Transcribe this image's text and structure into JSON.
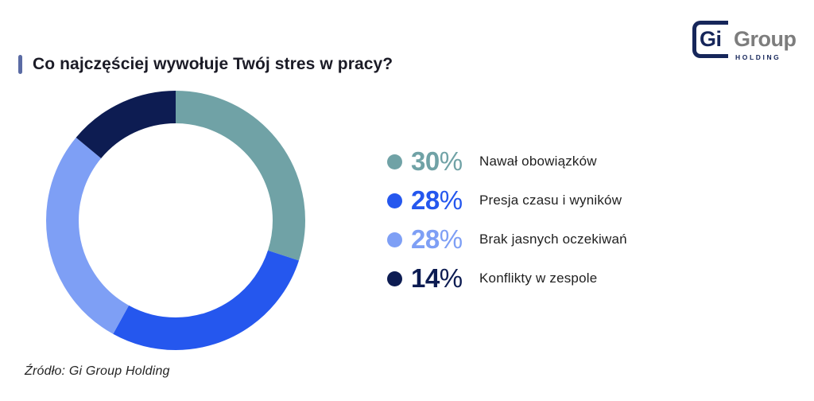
{
  "header": {
    "title": "Co najczęściej wywołuje Twój stres w pracy?",
    "accent_color": "#5A6BA4"
  },
  "logo": {
    "part_gi": "Gi",
    "part_group": "Group",
    "part_holding": "HOLDING",
    "navy": "#16265A",
    "gray": "#7D7D7D"
  },
  "chart_data": {
    "type": "pie",
    "subtype": "donut",
    "title": "Co najczęściej wywołuje Twój stres w pracy?",
    "start_angle_deg": 0,
    "direction": "clockwise",
    "legend_position": "right",
    "ring_thickness_px": 41,
    "items": [
      {
        "label": "Nawał obowiązków",
        "value": 30,
        "pct": "30",
        "sign": "%",
        "color": "#70A2A6"
      },
      {
        "label": "Presja czasu i wyników",
        "value": 28,
        "pct": "28",
        "sign": "%",
        "color": "#2557EE"
      },
      {
        "label": "Brak jasnych oczekiwań",
        "value": 28,
        "pct": "28",
        "sign": "%",
        "color": "#7E9FF5"
      },
      {
        "label": "Konflikty w zespole",
        "value": 14,
        "pct": "14",
        "sign": "%",
        "color": "#0D1C52"
      }
    ]
  },
  "footer": {
    "source": "Źródło: Gi Group Holding"
  }
}
